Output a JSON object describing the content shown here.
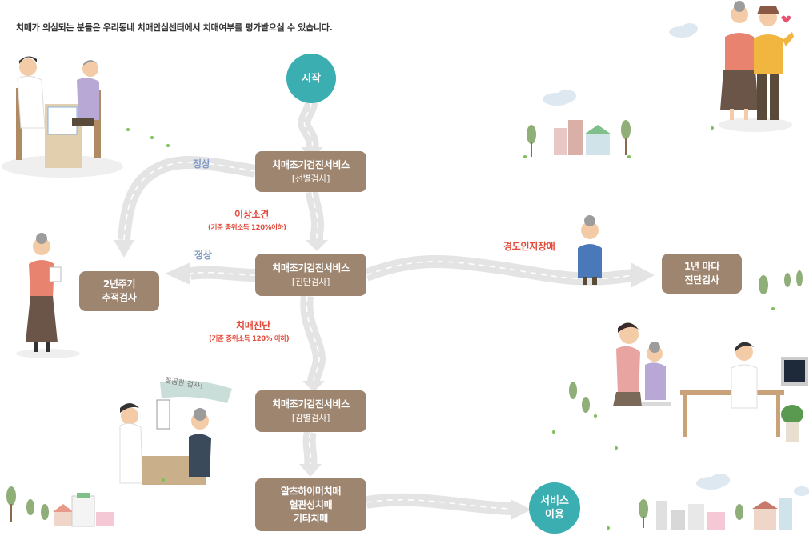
{
  "intro": "치매가 의심되는 분들은 우리동네 치매안심센터에서 치매여부를 평가받으실 수 있습니다.",
  "nodes": {
    "start": "시작",
    "screening": {
      "title": "치매조기검진서비스",
      "sub": "[선별검사]"
    },
    "diagnosis": {
      "title": "치매조기검진서비스",
      "sub": "[진단검사]"
    },
    "differential": {
      "title": "치매조기검진서비스",
      "sub": "[감별검사]"
    },
    "tracking": {
      "line1": "2년주기",
      "line2": "추적검사"
    },
    "annual": {
      "line1": "1년 마다",
      "line2": "진단검사"
    },
    "types": {
      "line1": "알츠하이머치매",
      "line2": "혈관성치매",
      "line3": "기타치매"
    },
    "service": {
      "line1": "서비스",
      "line2": "이용"
    }
  },
  "edges": {
    "normal_1": "정상",
    "normal_2": "정상",
    "abnormal": "이상소견",
    "abnormal_note": "(기준 중위소득 120%이하)",
    "mci": "경도인지장애",
    "dementia": "치매진단",
    "dementia_note": "(기준 중위소득 120% 이하)"
  },
  "illustration": {
    "speech_bubble": "꼼꼼한 검사!"
  },
  "colors": {
    "box": "#9d8570",
    "circle": "#3aaeb1",
    "road": "#e4e4e4",
    "label_blue": "#7f98c4",
    "label_red": "#e24b3b"
  }
}
